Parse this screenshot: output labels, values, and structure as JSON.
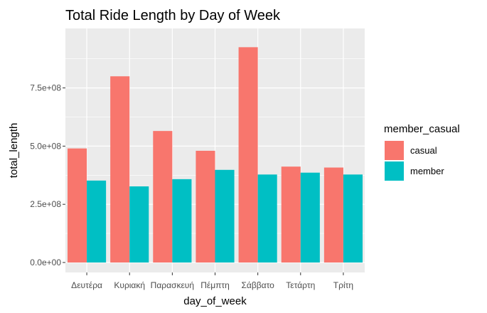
{
  "chart_data": {
    "type": "bar",
    "title": "Total Ride Length by Day of Week",
    "xlabel": "day_of_week",
    "ylabel": "total_length",
    "categories": [
      "Δευτέρα",
      "Κυριακή",
      "Παρασκευή",
      "Πέμπτη",
      "Σάββατο",
      "Τετάρτη",
      "Τρίτη"
    ],
    "series": [
      {
        "name": "casual",
        "values": [
          490000000,
          800000000,
          565000000,
          480000000,
          925000000,
          412000000,
          408000000
        ]
      },
      {
        "name": "member",
        "values": [
          352000000,
          327000000,
          358000000,
          398000000,
          378000000,
          386000000,
          378000000
        ]
      }
    ],
    "ylim": [
      0,
      975000000
    ],
    "yticks": [
      0,
      250000000,
      500000000,
      750000000
    ],
    "ytick_labels": [
      "0.0e+00",
      "2.5e+08",
      "5.0e+08",
      "7.5e+08"
    ],
    "grid": true,
    "legend": {
      "title": "member_casual",
      "position": "right"
    },
    "colors": {
      "casual": "#F8766D",
      "member": "#00BFC4",
      "panel": "#EBEBEB",
      "grid": "#FFFFFF"
    }
  }
}
